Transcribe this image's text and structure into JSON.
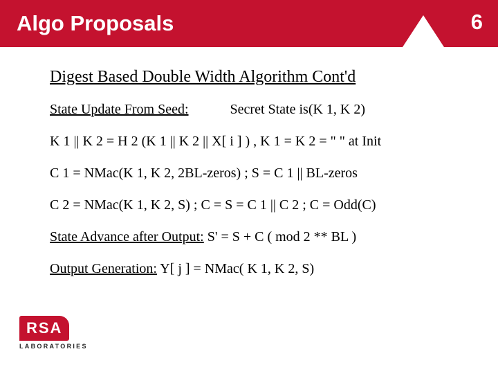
{
  "header": {
    "title": "Algo Proposals",
    "page_number": "6"
  },
  "subtitle": "Digest Based Double Width Algorithm Cont'd",
  "lines": {
    "state_update_label": "State Update From Seed:",
    "secret_state": "Secret State is(K 1, K 2)",
    "k1k2": "K 1 || K 2 = H 2 (K 1 || K 2  || X[ i ] ) ,   K 1 = K 2 = \" \" at Init",
    "c1": "C 1 = NMac(K 1, K 2, 2BL-zeros) ; S = C 1 || BL-zeros",
    "c2": "C 2 = NMac(K 1, K 2, S) ; C = S = C 1 || C 2 ; C = Odd(C)",
    "state_advance_label": "State Advance after Output:",
    "state_advance_rest": " S' = S + C ( mod 2 ** BL )",
    "output_gen_label": "Output Generation:",
    "output_gen_rest": " Y[ j ] = NMac( K 1, K 2, S)"
  },
  "logo": {
    "text": "RSA",
    "subtext": "LABORATORIES"
  }
}
